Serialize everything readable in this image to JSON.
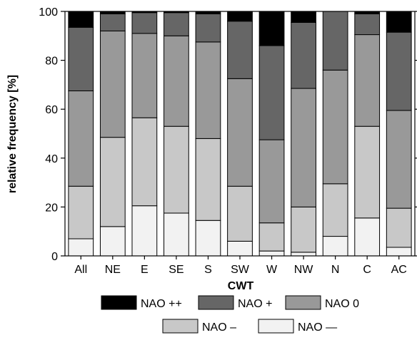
{
  "chart_data": {
    "type": "bar",
    "stacked": true,
    "xlabel": "CWT",
    "ylabel": "relative frequency [%]",
    "ylim": [
      0,
      100
    ],
    "yticks": [
      0,
      20,
      40,
      60,
      80,
      100
    ],
    "categories": [
      "All",
      "NE",
      "E",
      "SE",
      "S",
      "SW",
      "W",
      "NW",
      "N",
      "C",
      "AC"
    ],
    "series": [
      {
        "name": "NAO —",
        "color": "#f2f2f2",
        "values": [
          7,
          12,
          20.5,
          17.5,
          14.5,
          6,
          2,
          1.5,
          8,
          15.5,
          3.5
        ]
      },
      {
        "name": "NAO –",
        "color": "#c8c8c8",
        "values": [
          21.5,
          36.5,
          36,
          35.5,
          33.5,
          22.5,
          11.5,
          18.5,
          21.5,
          37.5,
          16
        ]
      },
      {
        "name": "NAO 0",
        "color": "#999999",
        "values": [
          39,
          43.5,
          34.5,
          37,
          39.5,
          44,
          34,
          48.5,
          46.5,
          37.5,
          40
        ]
      },
      {
        "name": "NAO +",
        "color": "#666666",
        "values": [
          26,
          7,
          8.5,
          9.5,
          11.5,
          23.5,
          38.5,
          27,
          24,
          8.5,
          32
        ]
      },
      {
        "name": "NAO ++",
        "color": "#000000",
        "values": [
          6.5,
          1,
          0.5,
          0.5,
          1,
          4,
          14,
          4.5,
          0,
          1,
          8.5
        ]
      }
    ],
    "legend": {
      "placement": "bottom",
      "rows": [
        [
          "NAO ++",
          "NAO +",
          "NAO 0"
        ],
        [
          "NAO –",
          "NAO —"
        ]
      ]
    }
  }
}
